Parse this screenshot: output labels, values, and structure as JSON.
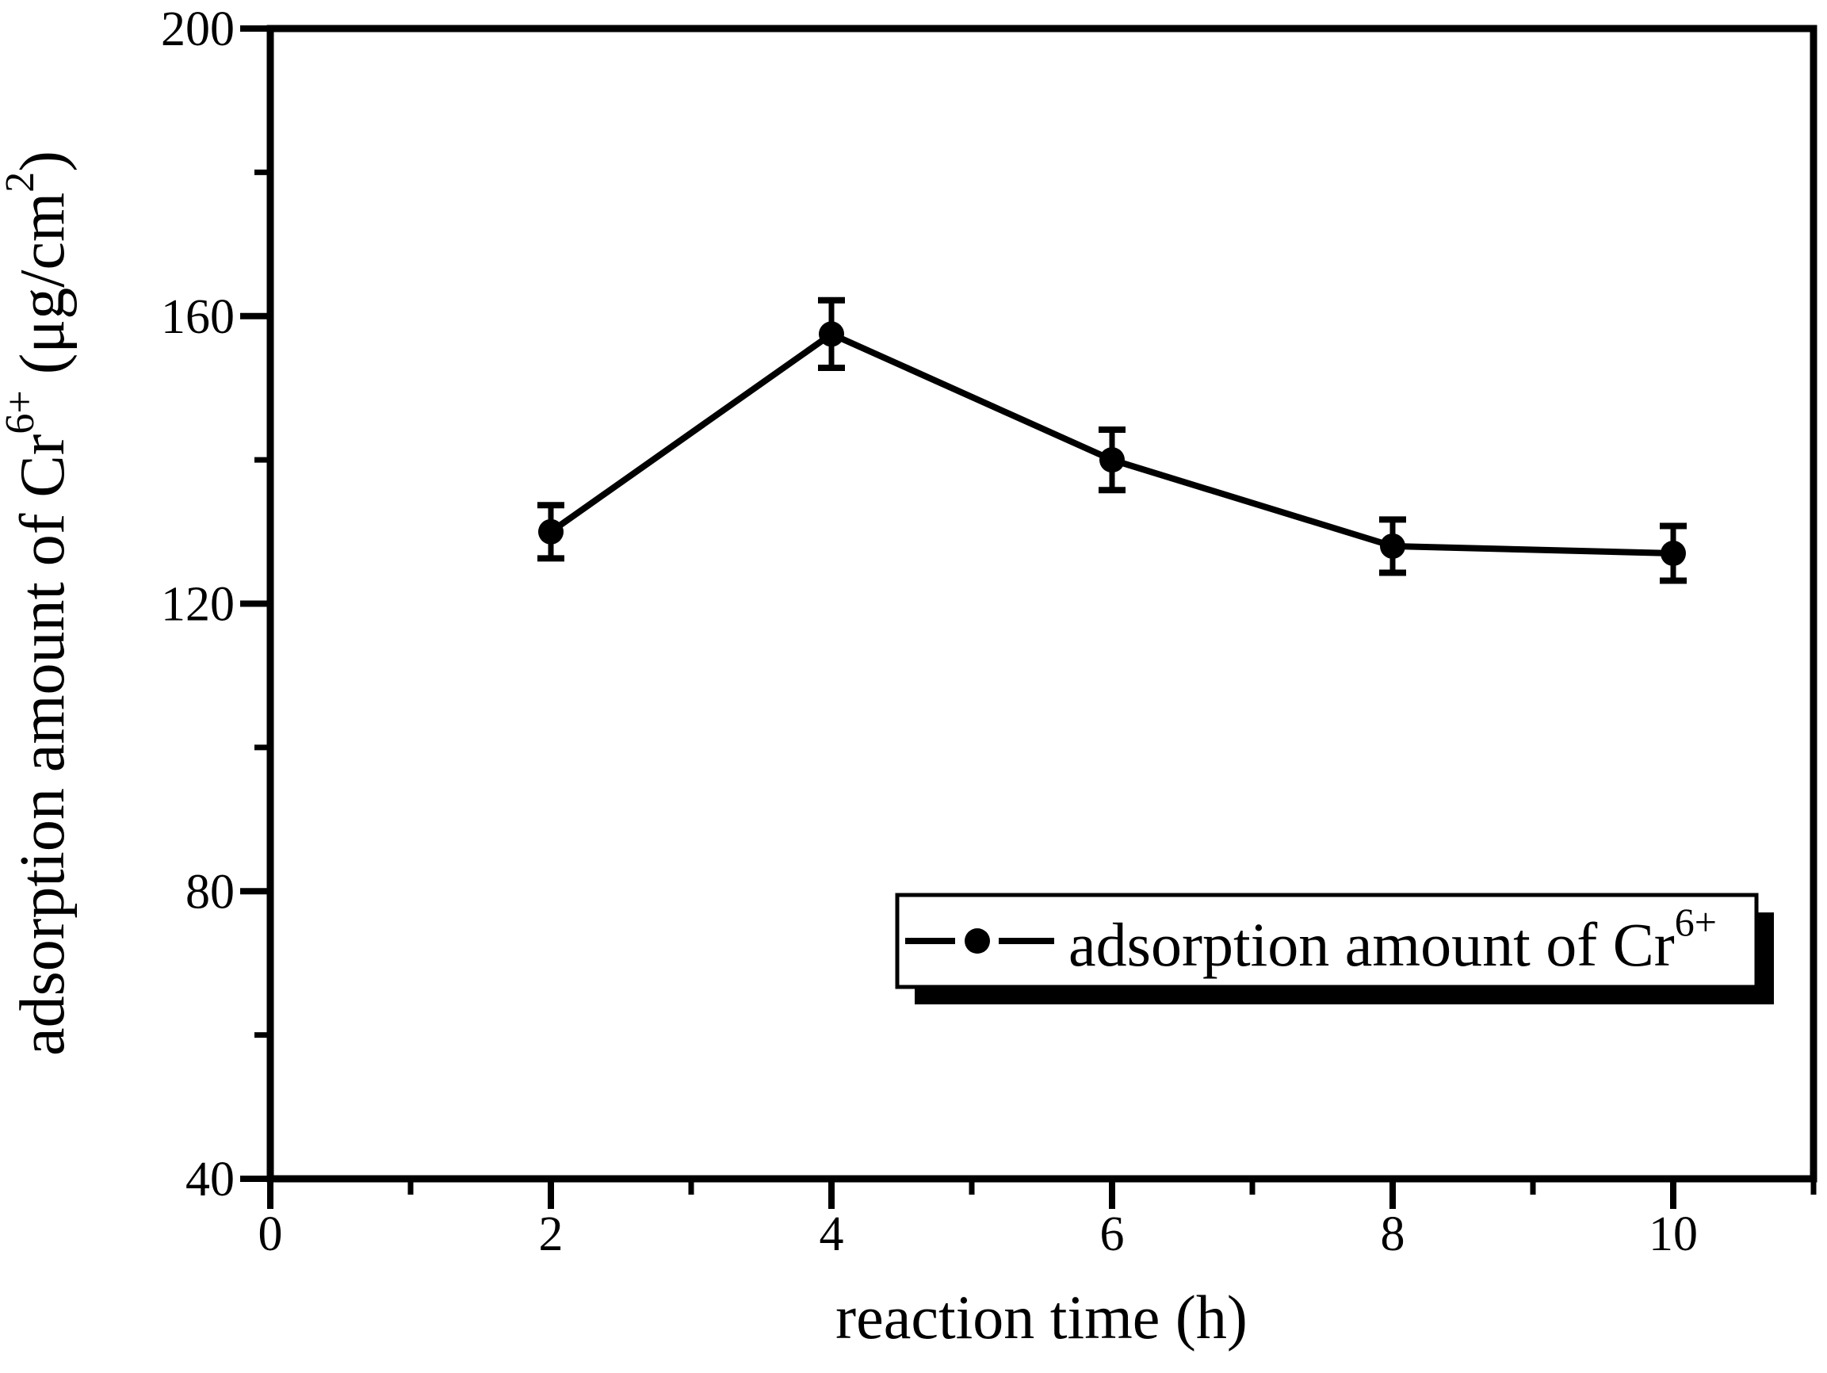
{
  "chart_data": {
    "type": "line",
    "title": "",
    "xlabel": "reaction time (h)",
    "ylabel": "adsorption amount of Cr6+ (μg/cm2)",
    "ylabel_parts": [
      {
        "text": "adsorption amount of Cr",
        "sup": false
      },
      {
        "text": "6+",
        "sup": true
      },
      {
        "text": " (μg/cm",
        "sup": false
      },
      {
        "text": "2",
        "sup": true
      },
      {
        "text": ")",
        "sup": false
      }
    ],
    "xlim": [
      0,
      11
    ],
    "ylim": [
      40,
      200
    ],
    "x_major_ticks": [
      0,
      2,
      4,
      6,
      8,
      10
    ],
    "x_minor_ticks": [
      1,
      3,
      5,
      7,
      9,
      11
    ],
    "y_major_ticks": [
      40,
      80,
      120,
      160,
      200
    ],
    "y_minor_ticks": [
      60,
      100,
      140,
      180
    ],
    "grid": false,
    "frame": "full-box",
    "tick_direction": "out",
    "series": [
      {
        "name": "adsorption amount of Cr6+",
        "marker": "filled-circle",
        "line_style": "solid",
        "x": [
          2,
          4,
          6,
          8,
          10
        ],
        "y": [
          130,
          157.5,
          140,
          128,
          127
        ],
        "yerr": [
          3.7,
          4.7,
          4.2,
          3.7,
          3.8
        ]
      }
    ],
    "legend": {
      "position": "lower-right",
      "shadow": true,
      "entries": [
        {
          "label": "adsorption amount of Cr6+",
          "label_parts": [
            {
              "text": "adsorption amount of Cr",
              "sup": false
            },
            {
              "text": "6+",
              "sup": true
            }
          ],
          "symbol": "line-dot-line"
        }
      ]
    },
    "colors": {
      "foreground": "#000000",
      "background": "#ffffff",
      "line": "#000000",
      "marker": "#000000",
      "error_bars": "#000000",
      "legend_shadow": "#000000",
      "legend_fill": "#ffffff"
    }
  }
}
